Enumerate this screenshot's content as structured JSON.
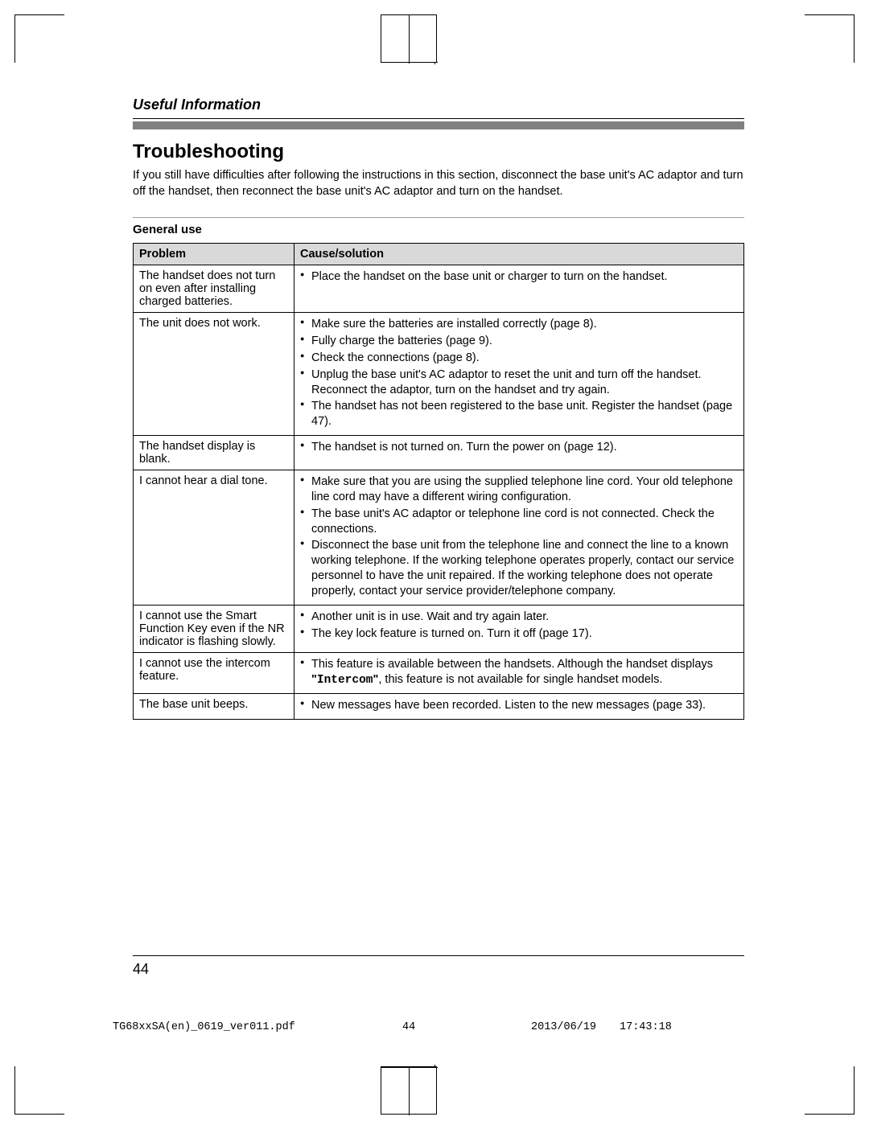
{
  "section_header": "Useful Information",
  "title": "Troubleshooting",
  "intro": "If you still have difficulties after following the instructions in this section, disconnect the base unit's AC adaptor and turn off the handset, then reconnect the base unit's AC adaptor and turn on the handset.",
  "subhead": "General use",
  "table": {
    "headers": [
      "Problem",
      "Cause/solution"
    ],
    "rows": [
      {
        "problem": "The handset does not turn on even after installing charged batteries.",
        "solutions": [
          "Place the handset on the base unit or charger to turn on the handset."
        ]
      },
      {
        "problem": "The unit does not work.",
        "solutions": [
          "Make sure the batteries are installed correctly (page 8).",
          "Fully charge the batteries (page 9).",
          "Check the connections (page 8).",
          "Unplug the base unit's AC adaptor to reset the unit and turn off the handset. Reconnect the adaptor, turn on the handset and try again.",
          "The handset has not been registered to the base unit. Register the handset (page 47)."
        ]
      },
      {
        "problem": "The handset display is blank.",
        "solutions": [
          "The handset is not turned on. Turn the power on (page 12)."
        ]
      },
      {
        "problem": "I cannot hear a dial tone.",
        "solutions": [
          "Make sure that you are using the supplied telephone line cord. Your old telephone line cord may have a different wiring configuration.",
          "The base unit's AC adaptor or telephone line cord is not connected. Check the connections.",
          "Disconnect the base unit from the telephone line and connect the line to a known working telephone. If the working telephone operates properly, contact our service personnel to have the unit repaired. If the working telephone does not operate properly, contact your service provider/telephone company."
        ]
      },
      {
        "problem": "I cannot use the Smart Function Key even if the NR indicator is flashing slowly.",
        "solutions": [
          "Another unit is in use. Wait and try again later.",
          "The key lock feature is turned on. Turn it off (page 17)."
        ]
      },
      {
        "problem": "I cannot use the intercom feature.",
        "solutions_html": "This feature is available between the handsets. Although the handset displays <b>\"</b><span class=\"mono\">Intercom</span><b>\"</b>, this feature is not available for single handset models."
      },
      {
        "problem": "The base unit beeps.",
        "solutions": [
          "New messages have been recorded. Listen to the new messages (page 33)."
        ]
      }
    ]
  },
  "page_number": "44",
  "footer": {
    "filename": "TG68xxSA(en)_0619_ver011.pdf",
    "page": "44",
    "date": "2013/06/19",
    "time": "17:43:18"
  },
  "colors": {
    "bar": "#808080",
    "header_bg": "#d9d9d9",
    "text": "#000000",
    "background": "#ffffff"
  }
}
